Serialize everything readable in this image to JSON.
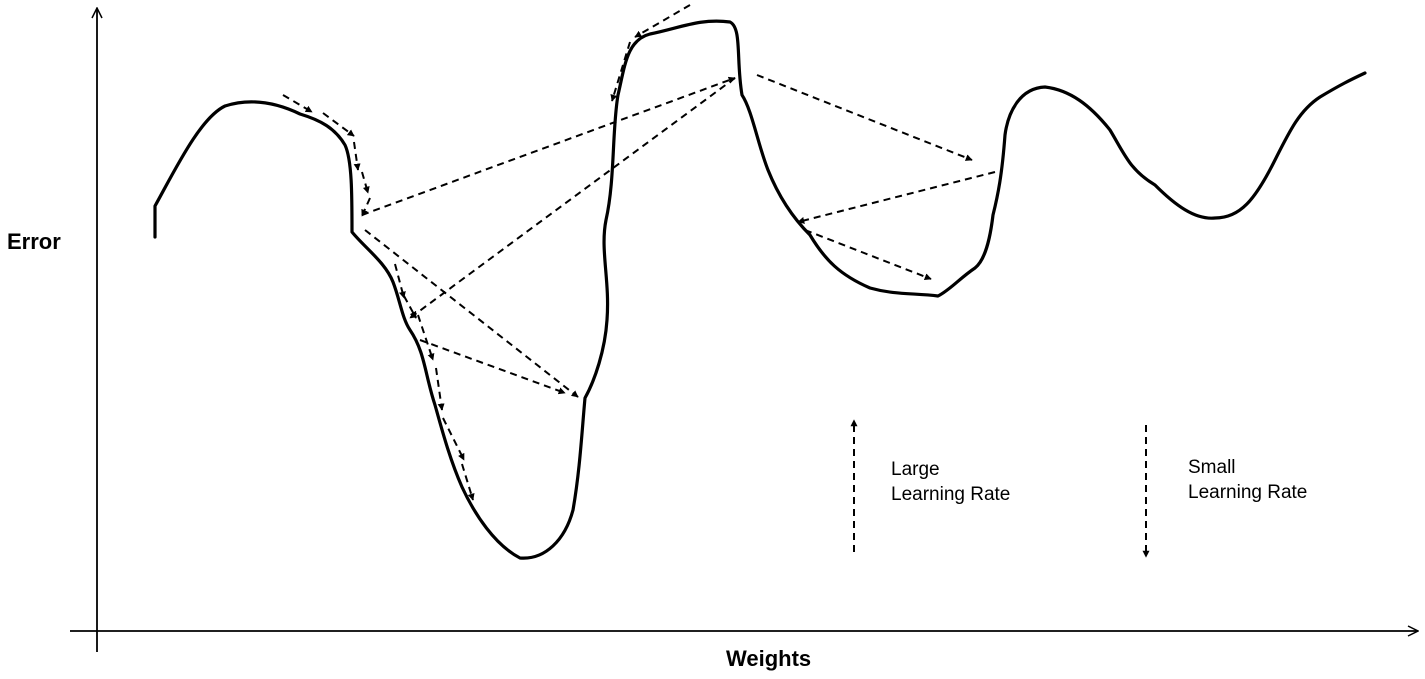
{
  "axes": {
    "y_label": "Error",
    "x_label": "Weights"
  },
  "legend": {
    "large": {
      "line1": "Large",
      "line2": "Learning Rate",
      "arrow_direction": "up"
    },
    "small": {
      "line1": "Small",
      "line2": "Learning Rate",
      "arrow_direction": "down"
    }
  },
  "colors": {
    "stroke": "#000000",
    "background": "#ffffff"
  }
}
